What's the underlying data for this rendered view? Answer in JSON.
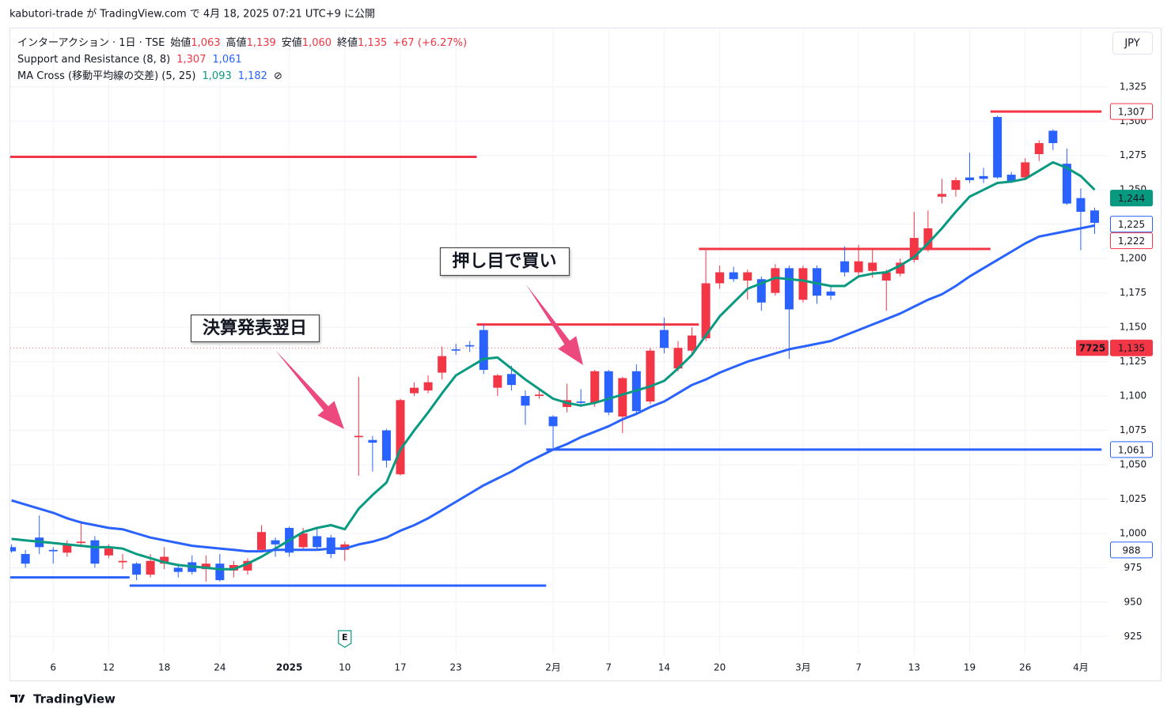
{
  "published": "kabutori-trade が TradingView.com で 4月 18, 2025 07:21 UTC+9 に公開",
  "brand": "TradingView",
  "chart_data": {
    "type": "candlestick",
    "title": "インターアクション · 1日 · TSE",
    "ohlc_legend": [
      {
        "name": "始値",
        "value": {
          "value": 1063,
          "label": "1,063"
        }
      },
      {
        "name": "高値",
        "value": {
          "value": 1139,
          "label": "1,139"
        }
      },
      {
        "name": "安値",
        "value": {
          "value": 1060,
          "label": "1,060"
        }
      },
      {
        "name": "終値",
        "value": {
          "value": 1135,
          "label": "1,135"
        }
      }
    ],
    "change": "+67 (+6.27%)",
    "currency": "JPY",
    "up_color": "#f23645",
    "down_color": "#2962ff",
    "categories": [
      null,
      null,
      null,
      "6",
      null,
      null,
      null,
      "12",
      null,
      null,
      null,
      "18",
      null,
      null,
      null,
      "24",
      null,
      null,
      null,
      null,
      "2025",
      null,
      null,
      null,
      "10",
      null,
      null,
      null,
      "17",
      null,
      null,
      null,
      "23",
      null,
      null,
      null,
      null,
      null,
      null,
      "2月",
      null,
      null,
      null,
      "7",
      null,
      null,
      null,
      "14",
      null,
      null,
      null,
      "20",
      null,
      null,
      null,
      null,
      null,
      "3月",
      null,
      null,
      null,
      "7",
      null,
      null,
      null,
      "13",
      null,
      null,
      null,
      "19",
      null,
      null,
      null,
      "26",
      null,
      null,
      null,
      "4月",
      null
    ],
    "open": [
      990,
      985,
      997,
      988,
      986,
      993,
      995,
      984,
      979,
      978,
      970,
      978,
      975,
      979,
      974,
      978,
      973,
      973,
      988,
      995,
      1004,
      990,
      998,
      997,
      988,
      1070,
      1068,
      1075,
      1043,
      1102,
      1104,
      1117,
      1134,
      1137,
      1148,
      1106,
      1116,
      1100,
      1100,
      1085,
      1092,
      1096,
      1095,
      1118,
      1085,
      1118,
      1096,
      1148,
      1120,
      1133,
      1142,
      1182,
      1190,
      1184,
      1185,
      1175,
      1193,
      1170,
      1193,
      1176,
      1198,
      1190,
      1191,
      1184,
      1189,
      1199,
      1207,
      1245,
      1250,
      1259,
      1260,
      1303,
      1261,
      1259,
      1276,
      1293,
      1269,
      1244,
      1235
    ],
    "high": [
      992,
      988,
      1013,
      990,
      995,
      1009,
      998,
      992,
      985,
      979,
      985,
      990,
      978,
      984,
      984,
      985,
      980,
      982,
      1006,
      997,
      1005,
      1004,
      1004,
      999,
      994,
      1114,
      1071,
      1076,
      1098,
      1110,
      1115,
      1136,
      1138,
      1140,
      1152,
      1116,
      1122,
      1104,
      1104,
      1086,
      1109,
      1105,
      1119,
      1119,
      1114,
      1123,
      1135,
      1157,
      1140,
      1150,
      1206,
      1195,
      1194,
      1192,
      1187,
      1196,
      1195,
      1195,
      1195,
      1180,
      1209,
      1210,
      1207,
      1192,
      1200,
      1234,
      1235,
      1258,
      1259,
      1277,
      1266,
      1304,
      1263,
      1273,
      1286,
      1294,
      1280,
      1251,
      1237
    ],
    "low": [
      986,
      975,
      985,
      978,
      983,
      990,
      975,
      982,
      974,
      966,
      968,
      974,
      968,
      970,
      965,
      965,
      968,
      970,
      986,
      983,
      983,
      988,
      988,
      982,
      980,
      1042,
      1045,
      1048,
      1042,
      1100,
      1102,
      1112,
      1130,
      1132,
      1116,
      1100,
      1104,
      1079,
      1098,
      1062,
      1088,
      1092,
      1092,
      1086,
      1073,
      1087,
      1094,
      1131,
      1118,
      1131,
      1140,
      1178,
      1183,
      1170,
      1162,
      1173,
      1127,
      1168,
      1167,
      1170,
      1187,
      1186,
      1186,
      1162,
      1187,
      1197,
      1205,
      1240,
      1245,
      1255,
      1255,
      1258,
      1255,
      1257,
      1271,
      1279,
      1239,
      1206,
      1218
    ],
    "close": [
      987,
      978,
      990,
      987,
      992,
      994,
      978,
      989,
      980,
      970,
      980,
      983,
      972,
      972,
      978,
      966,
      977,
      980,
      1001,
      992,
      986,
      1000,
      990,
      985,
      992,
      1071,
      1066,
      1053,
      1097,
      1106,
      1110,
      1129,
      1133,
      1136,
      1119,
      1115,
      1108,
      1093,
      1101,
      1078,
      1097,
      1095,
      1118,
      1088,
      1113,
      1089,
      1133,
      1135,
      1135,
      1144,
      1182,
      1190,
      1185,
      1190,
      1168,
      1193,
      1163,
      1193,
      1173,
      1173,
      1190,
      1198,
      1197,
      1190,
      1197,
      1215,
      1222,
      1247,
      1257,
      1257,
      1258,
      1259,
      1256,
      1270,
      1284,
      1284,
      1240,
      1234,
      1226
    ],
    "indicators": [
      {
        "name": "Support and Resistance (8, 8)",
        "legend_values": [
          {
            "value": 1307,
            "label": "1,307",
            "color": "#f23645"
          },
          {
            "value": 1061,
            "label": "1,061",
            "color": "#2962ff"
          }
        ],
        "levels": [
          {
            "value": 1274,
            "start": 0,
            "end": 33,
            "color": "#f23645"
          },
          {
            "value": 968,
            "start": 0,
            "end": 8,
            "color": "#2962ff"
          },
          {
            "value": 962,
            "start": 9,
            "end": 38,
            "color": "#2962ff"
          },
          {
            "value": 1152,
            "start": 34,
            "end": 49,
            "color": "#f23645"
          },
          {
            "value": 1207,
            "start": 50,
            "end": 70,
            "color": "#f23645"
          },
          {
            "value": 1061,
            "start": 39,
            "end": 78,
            "color": "#2962ff"
          },
          {
            "value": 1307,
            "start": 71,
            "end": 78,
            "color": "#f23645"
          }
        ]
      },
      {
        "name": "MA Cross (移動平均線の交差) (5, 25)",
        "legend_values": [
          {
            "value": 1093,
            "label": "1,093",
            "color": "#089981"
          },
          {
            "value": 1182,
            "label": "1,182",
            "color": "#2962ff"
          }
        ],
        "legend_icon": "⊘",
        "lines": [
          {
            "color": "#089981",
            "values": [
              996,
              995,
              994,
              993,
              992,
              991,
              990,
              990,
              989,
              985,
              982,
              979,
              977,
              976,
              975,
              974,
              974,
              978,
              983,
              989,
              995,
              1001,
              1004,
              1006,
              1003,
              1018,
              1028,
              1037,
              1061,
              1075,
              1088,
              1102,
              1115,
              1121,
              1127,
              1128,
              1120,
              1112,
              1105,
              1098,
              1095,
              1093,
              1095,
              1098,
              1101,
              1104,
              1107,
              1111,
              1120,
              1130,
              1144,
              1158,
              1168,
              1178,
              1182,
              1186,
              1185,
              1184,
              1182,
              1180,
              1180,
              1187,
              1189,
              1190,
              1195,
              1201,
              1211,
              1222,
              1234,
              1245,
              1250,
              1255,
              1256,
              1258,
              1264,
              1270,
              1266,
              1260,
              1250
            ]
          },
          {
            "color": "#2962ff",
            "values": [
              1024,
              1021,
              1018,
              1015,
              1011,
              1008,
              1006,
              1004,
              1003,
              1000,
              997,
              995,
              993,
              991,
              990,
              989,
              988,
              987,
              987,
              988,
              988,
              988,
              988,
              989,
              989,
              992,
              994,
              997,
              1002,
              1006,
              1011,
              1017,
              1023,
              1029,
              1035,
              1040,
              1045,
              1051,
              1056,
              1061,
              1065,
              1070,
              1074,
              1078,
              1083,
              1087,
              1092,
              1096,
              1102,
              1108,
              1112,
              1117,
              1121,
              1125,
              1128,
              1131,
              1134,
              1136,
              1138,
              1140,
              1144,
              1148,
              1152,
              1156,
              1160,
              1165,
              1170,
              1174,
              1180,
              1187,
              1193,
              1199,
              1205,
              1211,
              1216,
              1218,
              1220,
              1222,
              1224
            ]
          }
        ]
      }
    ],
    "price_tags": [
      {
        "value": 1307,
        "label": "1,307",
        "color": "#f23645",
        "filled": false
      },
      {
        "value": 1244,
        "label": "1,244",
        "color": "#089981",
        "filled": true
      },
      {
        "value": 1225,
        "label": "1,225",
        "color": "#2962ff",
        "filled": false
      },
      {
        "value": 1222,
        "label": "1,222",
        "color": "#f23645",
        "filled": false
      },
      {
        "value": 1135,
        "label": "1,135",
        "color": "#f23645",
        "filled": true,
        "symbol": "7725",
        "line": true
      },
      {
        "value": 1061,
        "label": "1,061",
        "color": "#2962ff",
        "filled": false
      },
      {
        "value": 988,
        "label": "988",
        "color": "#2962ff",
        "filled": false
      }
    ],
    "annotations": [
      "決算発表翌日",
      "押し目で買い"
    ],
    "events": [
      {
        "category": 24,
        "label": "E"
      }
    ],
    "ylim": [
      912,
      1368
    ],
    "yticks": [
      925,
      950,
      975,
      {
        "value": 1000,
        "label": "1,000"
      },
      {
        "value": 1025,
        "label": "1,025"
      },
      {
        "value": 1050,
        "label": "1,050"
      },
      {
        "value": 1075,
        "label": "1,075"
      },
      {
        "value": 1100,
        "label": "1,100"
      },
      {
        "value": 1125,
        "label": "1,125"
      },
      {
        "value": 1150,
        "label": "1,150"
      },
      {
        "value": 1175,
        "label": "1,175"
      },
      {
        "value": 1200,
        "label": "1,200"
      },
      {
        "value": 1225,
        "label": "1,225"
      },
      {
        "value": 1250,
        "label": "1,250"
      },
      {
        "value": 1275,
        "label": "1,275"
      },
      {
        "value": 1300,
        "label": "1,300"
      },
      {
        "value": 1325,
        "label": "1,325"
      }
    ],
    "grid": true
  }
}
